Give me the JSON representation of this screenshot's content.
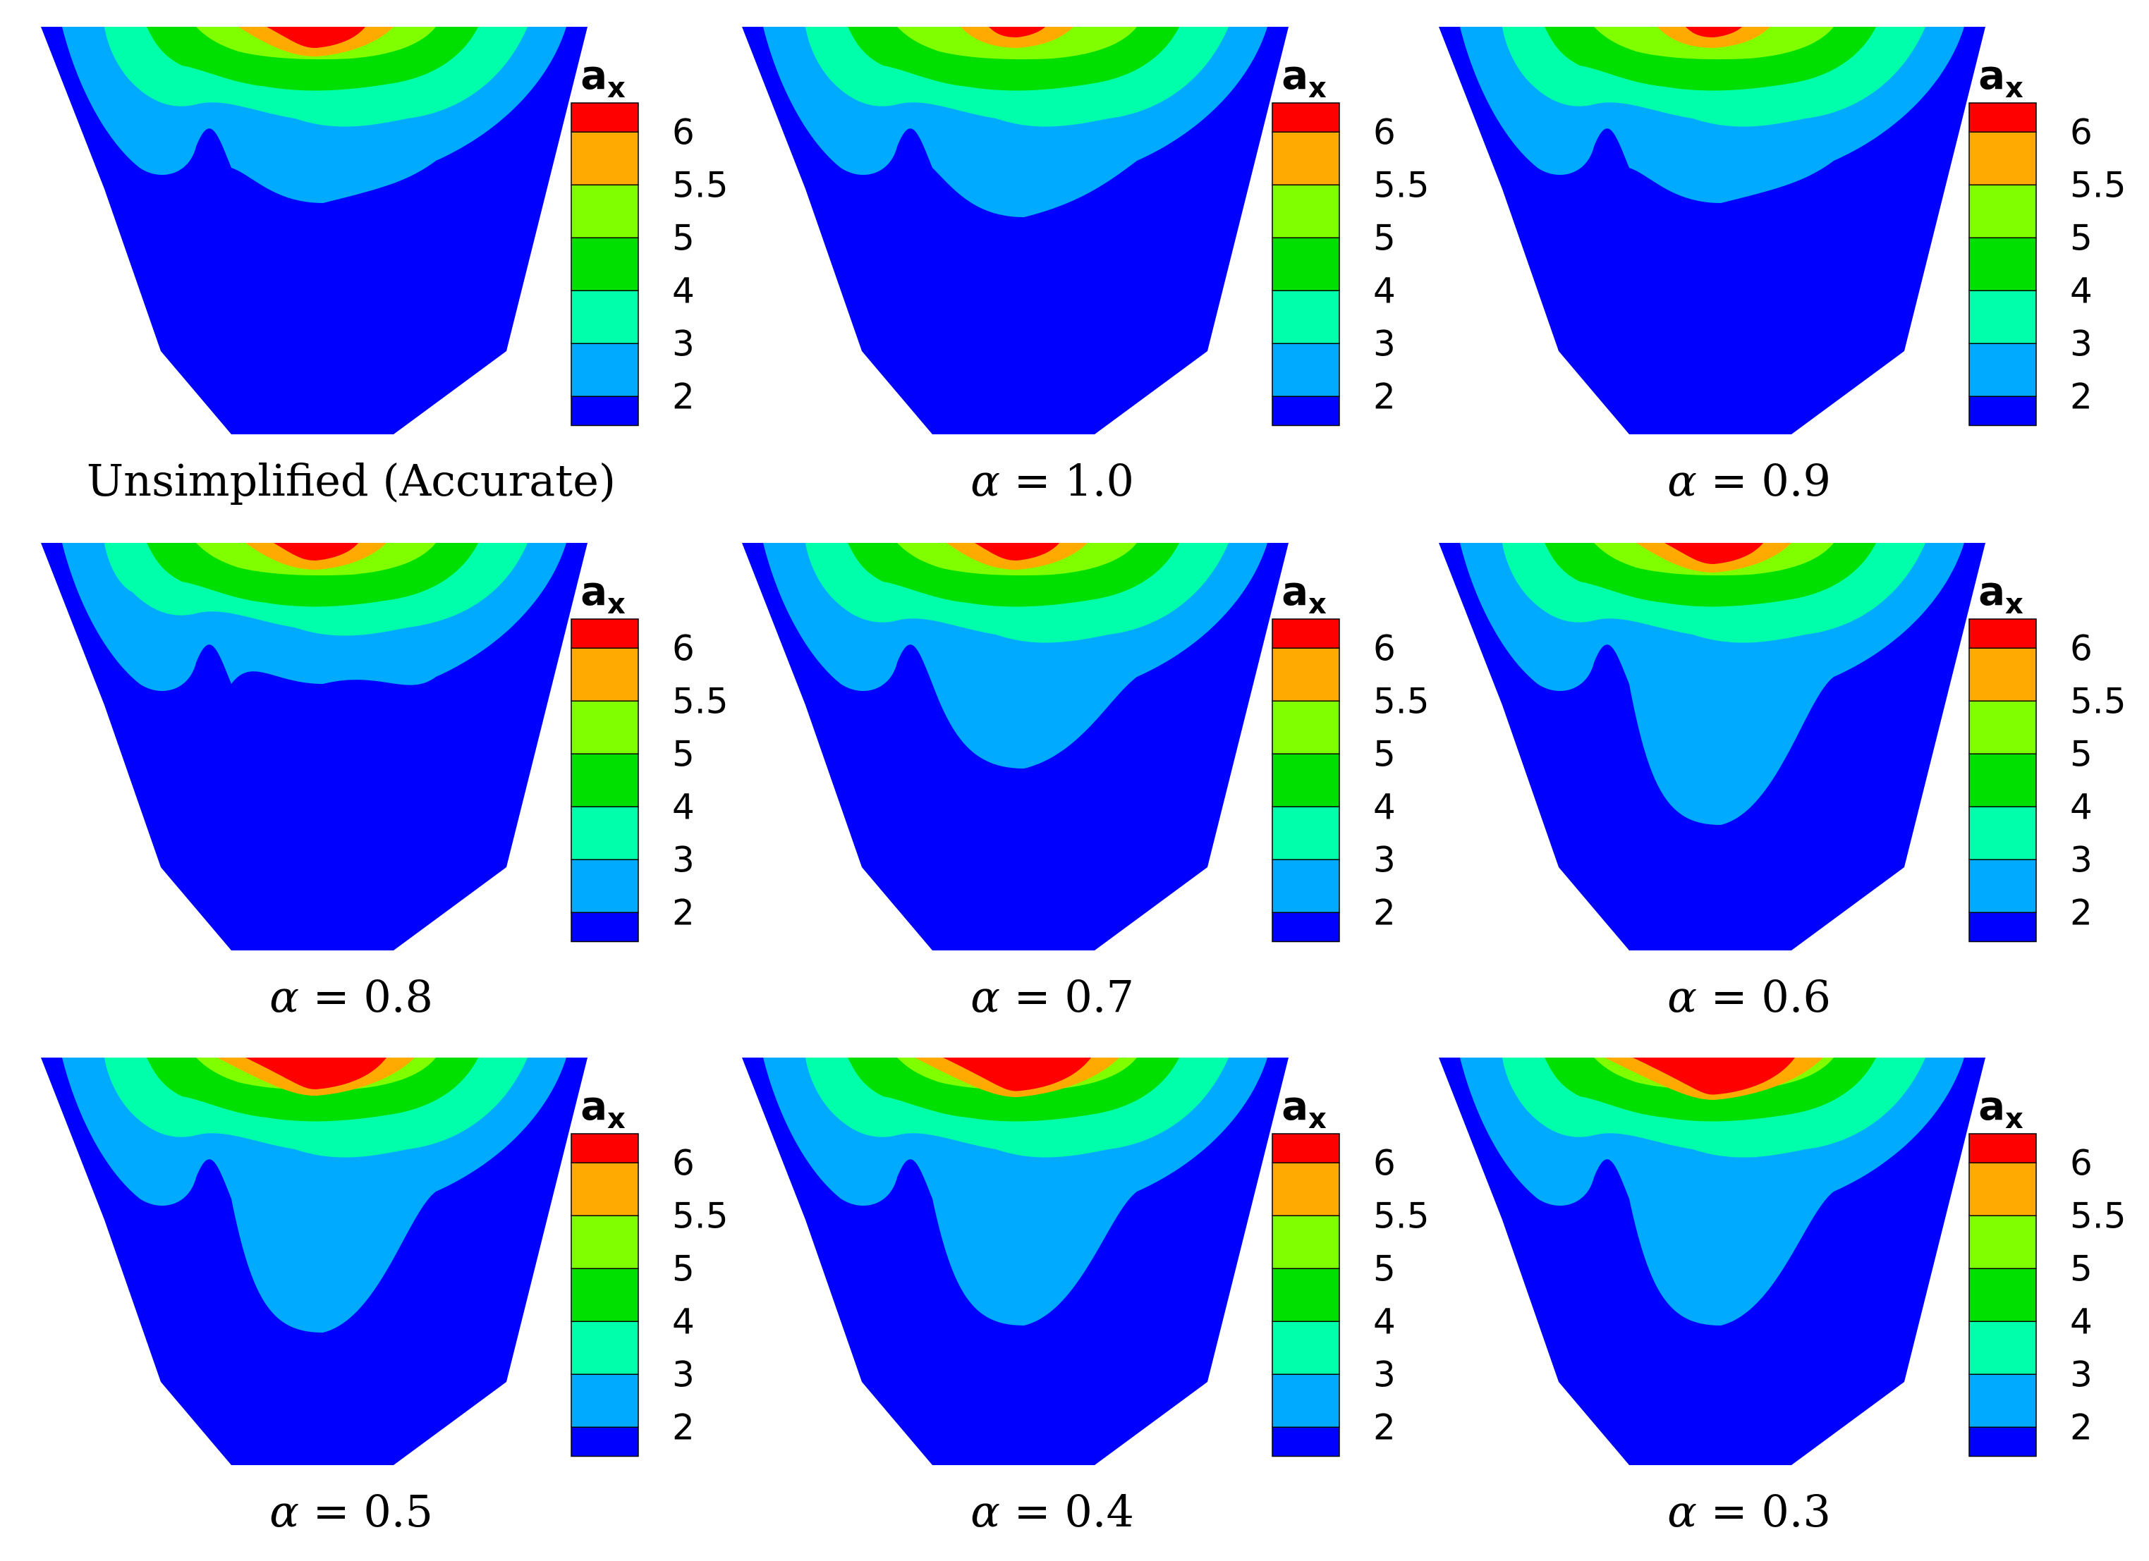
{
  "figure": {
    "panel_count": 9,
    "layout": "3 rows x 3 columns"
  },
  "chart_data": [
    {
      "type": "heatmap",
      "title": "Unsimplified (Accurate)",
      "alpha": null,
      "variable": "a",
      "variable_subscript": "x",
      "legend_ticks": [
        "6",
        "5.5",
        "5",
        "4",
        "3",
        "2"
      ],
      "legend_levels": [
        "#ff0000",
        "#ffaa00",
        "#80ff00",
        "#00e000",
        "#00ffaa",
        "#00aaff",
        "#0000ff"
      ]
    },
    {
      "type": "heatmap",
      "title": "= 1.0",
      "alpha": "α",
      "variable": "a",
      "variable_subscript": "x",
      "legend_ticks": [
        "6",
        "5.5",
        "5",
        "4",
        "3",
        "2"
      ],
      "legend_levels": [
        "#ff0000",
        "#ffaa00",
        "#80ff00",
        "#00e000",
        "#00ffaa",
        "#00aaff",
        "#0000ff"
      ]
    },
    {
      "type": "heatmap",
      "title": "= 0.9",
      "alpha": "α",
      "variable": "a",
      "variable_subscript": "x",
      "legend_ticks": [
        "6",
        "5.5",
        "5",
        "4",
        "3",
        "2"
      ],
      "legend_levels": [
        "#ff0000",
        "#ffaa00",
        "#80ff00",
        "#00e000",
        "#00ffaa",
        "#00aaff",
        "#0000ff"
      ]
    },
    {
      "type": "heatmap",
      "title": "= 0.8",
      "alpha": "α",
      "variable": "a",
      "variable_subscript": "x",
      "legend_ticks": [
        "6",
        "5.5",
        "5",
        "4",
        "3",
        "2"
      ],
      "legend_levels": [
        "#ff0000",
        "#ffaa00",
        "#80ff00",
        "#00e000",
        "#00ffaa",
        "#00aaff",
        "#0000ff"
      ]
    },
    {
      "type": "heatmap",
      "title": "= 0.7",
      "alpha": "α",
      "variable": "a",
      "variable_subscript": "x",
      "legend_ticks": [
        "6",
        "5.5",
        "5",
        "4",
        "3",
        "2"
      ],
      "legend_levels": [
        "#ff0000",
        "#ffaa00",
        "#80ff00",
        "#00e000",
        "#00ffaa",
        "#00aaff",
        "#0000ff"
      ]
    },
    {
      "type": "heatmap",
      "title": "= 0.6",
      "alpha": "α",
      "variable": "a",
      "variable_subscript": "x",
      "legend_ticks": [
        "6",
        "5.5",
        "5",
        "4",
        "3",
        "2"
      ],
      "legend_levels": [
        "#ff0000",
        "#ffaa00",
        "#80ff00",
        "#00e000",
        "#00ffaa",
        "#00aaff",
        "#0000ff"
      ]
    },
    {
      "type": "heatmap",
      "title": "= 0.5",
      "alpha": "α",
      "variable": "a",
      "variable_subscript": "x",
      "legend_ticks": [
        "6",
        "5.5",
        "5",
        "4",
        "3",
        "2"
      ],
      "legend_levels": [
        "#ff0000",
        "#ffaa00",
        "#80ff00",
        "#00e000",
        "#00ffaa",
        "#00aaff",
        "#0000ff"
      ]
    },
    {
      "type": "heatmap",
      "title": "= 0.4",
      "alpha": "α",
      "variable": "a",
      "variable_subscript": "x",
      "legend_ticks": [
        "6",
        "5.5",
        "5",
        "4",
        "3",
        "2"
      ],
      "legend_levels": [
        "#ff0000",
        "#ffaa00",
        "#80ff00",
        "#00e000",
        "#00ffaa",
        "#00aaff",
        "#0000ff"
      ]
    },
    {
      "type": "heatmap",
      "title": "= 0.3",
      "alpha": "α",
      "variable": "a",
      "variable_subscript": "x",
      "legend_ticks": [
        "6",
        "5.5",
        "5",
        "4",
        "3",
        "2"
      ],
      "legend_levels": [
        "#ff0000",
        "#ffaa00",
        "#80ff00",
        "#00e000",
        "#00ffaa",
        "#00aaff",
        "#0000ff"
      ]
    }
  ]
}
